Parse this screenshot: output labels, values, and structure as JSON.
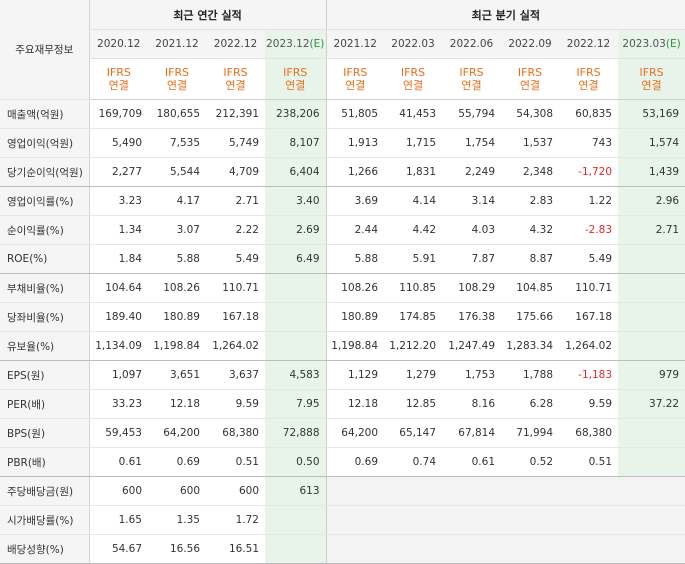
{
  "header": {
    "corner_label": "주요재무정보",
    "annual_group": "최근 연간 실적",
    "quarterly_group": "최근 분기 실적",
    "annual_periods": [
      "2020.12",
      "2021.12",
      "2022.12",
      "2023.12"
    ],
    "annual_estimate_mark": "(E)",
    "quarterly_periods": [
      "2021.12",
      "2022.03",
      "2022.06",
      "2022.09",
      "2022.12",
      "2023.03"
    ],
    "quarterly_estimate_mark": "(E)",
    "ifrs_top": "IFRS",
    "ifrs_bottom": "연결"
  },
  "rows": [
    {
      "label": "매출액(억원)",
      "values": [
        "169,709",
        "180,655",
        "212,391",
        "238,206",
        "51,805",
        "41,453",
        "55,794",
        "54,308",
        "60,835",
        "53,169"
      ]
    },
    {
      "label": "영업이익(억원)",
      "values": [
        "5,490",
        "7,535",
        "5,749",
        "8,107",
        "1,913",
        "1,715",
        "1,754",
        "1,537",
        "743",
        "1,574"
      ]
    },
    {
      "label": "당기순이익(억원)",
      "values": [
        "2,277",
        "5,544",
        "4,709",
        "6,404",
        "1,266",
        "1,831",
        "2,249",
        "2,348",
        "-1,720",
        "1,439"
      ]
    },
    {
      "label": "영업이익률(%)",
      "values": [
        "3.23",
        "4.17",
        "2.71",
        "3.40",
        "3.69",
        "4.14",
        "3.14",
        "2.83",
        "1.22",
        "2.96"
      ]
    },
    {
      "label": "순이익률(%)",
      "values": [
        "1.34",
        "3.07",
        "2.22",
        "2.69",
        "2.44",
        "4.42",
        "4.03",
        "4.32",
        "-2.83",
        "2.71"
      ]
    },
    {
      "label": "ROE(%)",
      "values": [
        "1.84",
        "5.88",
        "5.49",
        "6.49",
        "5.88",
        "5.91",
        "7.87",
        "8.87",
        "5.49",
        ""
      ]
    },
    {
      "label": "부채비율(%)",
      "values": [
        "104.64",
        "108.26",
        "110.71",
        "",
        "108.26",
        "110.85",
        "108.29",
        "104.85",
        "110.71",
        ""
      ]
    },
    {
      "label": "당좌비율(%)",
      "values": [
        "189.40",
        "180.89",
        "167.18",
        "",
        "180.89",
        "174.85",
        "176.38",
        "175.66",
        "167.18",
        ""
      ]
    },
    {
      "label": "유보율(%)",
      "values": [
        "1,134.09",
        "1,198.84",
        "1,264.02",
        "",
        "1,198.84",
        "1,212.20",
        "1,247.49",
        "1,283.34",
        "1,264.02",
        ""
      ]
    },
    {
      "label": "EPS(원)",
      "values": [
        "1,097",
        "3,651",
        "3,637",
        "4,583",
        "1,129",
        "1,279",
        "1,753",
        "1,788",
        "-1,183",
        "979"
      ]
    },
    {
      "label": "PER(배)",
      "values": [
        "33.23",
        "12.18",
        "9.59",
        "7.95",
        "12.18",
        "12.85",
        "8.16",
        "6.28",
        "9.59",
        "37.22"
      ]
    },
    {
      "label": "BPS(원)",
      "values": [
        "59,453",
        "64,200",
        "68,380",
        "72,888",
        "64,200",
        "65,147",
        "67,814",
        "71,994",
        "68,380",
        ""
      ]
    },
    {
      "label": "PBR(배)",
      "values": [
        "0.61",
        "0.69",
        "0.51",
        "0.50",
        "0.69",
        "0.74",
        "0.61",
        "0.52",
        "0.51",
        ""
      ]
    },
    {
      "label": "주당배당금(원)",
      "values": [
        "600",
        "600",
        "600",
        "613",
        "",
        "",
        "",
        "",
        "",
        ""
      ]
    },
    {
      "label": "시가배당률(%)",
      "values": [
        "1.65",
        "1.35",
        "1.72",
        "",
        "",
        "",
        "",
        "",
        "",
        ""
      ]
    },
    {
      "label": "배당성향(%)",
      "values": [
        "54.67",
        "16.56",
        "16.51",
        "",
        "",
        "",
        "",
        "",
        "",
        ""
      ]
    }
  ],
  "colors": {
    "ifrs_label": "#ea6f1b",
    "negative": "#e02a2a",
    "estimate_bg": "#e8f4ea",
    "estimate_mark": "#2f8f3f",
    "header_bg": "#f5f5f5"
  }
}
